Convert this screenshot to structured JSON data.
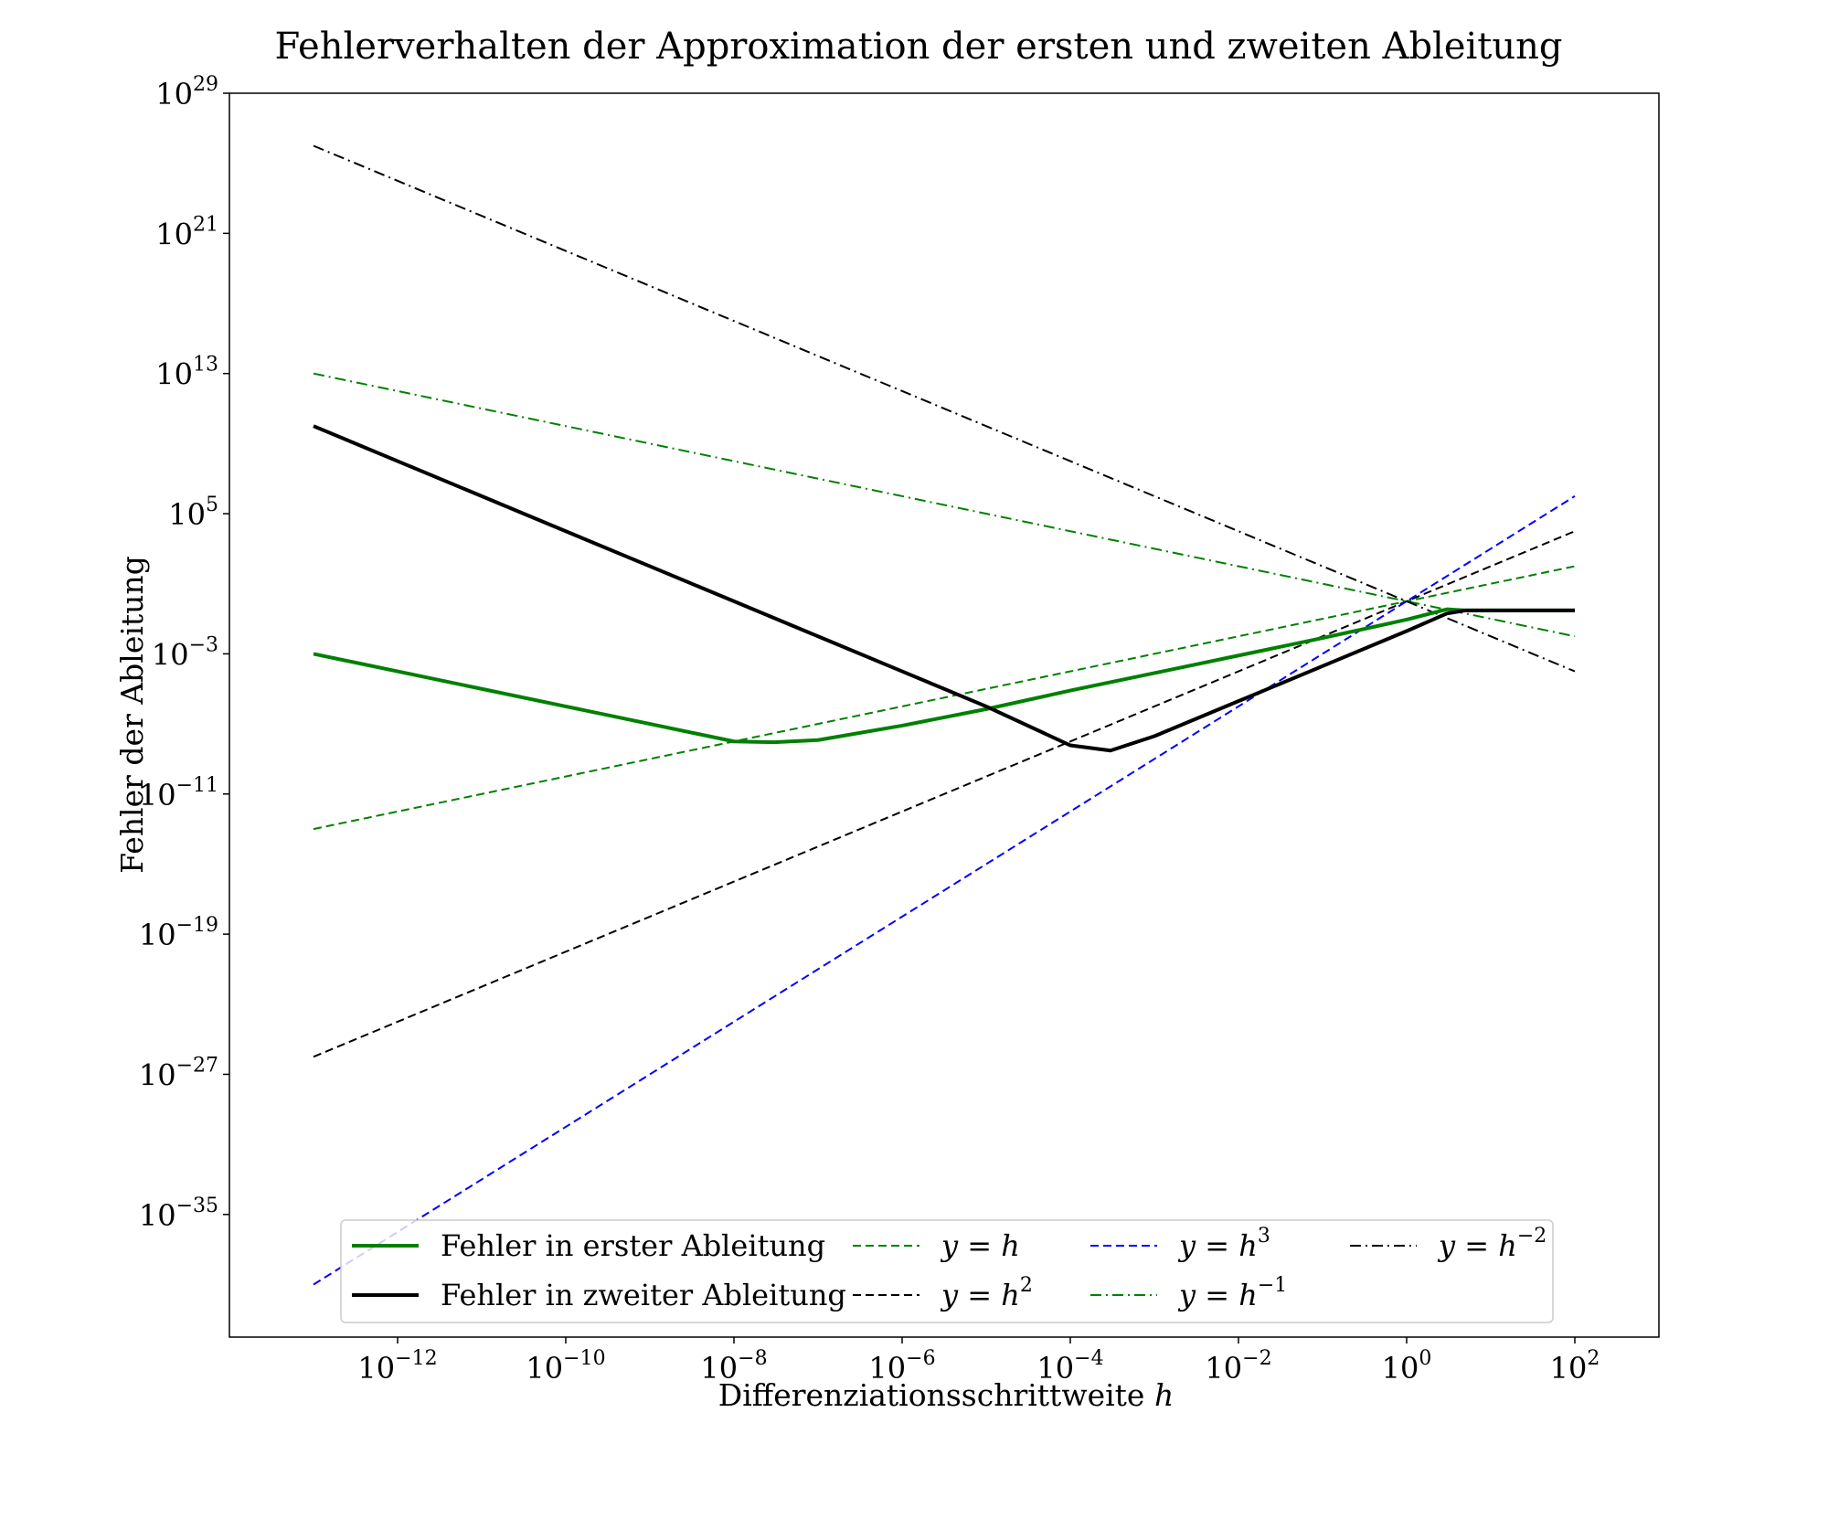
{
  "chart_data": {
    "type": "line",
    "title": "Fehlerverhalten der Approximation der ersten und zweiten Ableitung",
    "xlabel": "Differenziationsschrittweite",
    "xlabel_var": "h",
    "ylabel": "Fehler der Ableitung",
    "xscale": "log",
    "yscale": "log",
    "xlim": [
      1e-14,
      1000.0
    ],
    "ylim": [
      1e-42,
      1e+29
    ],
    "grid": false,
    "legend_position": "bottom",
    "x_ticks": [
      {
        "base": "10",
        "exp": "−12",
        "value": 1e-12
      },
      {
        "base": "10",
        "exp": "−10",
        "value": 1e-10
      },
      {
        "base": "10",
        "exp": "−8",
        "value": 1e-08
      },
      {
        "base": "10",
        "exp": "−6",
        "value": 1e-06
      },
      {
        "base": "10",
        "exp": "−4",
        "value": 0.0001
      },
      {
        "base": "10",
        "exp": "−2",
        "value": 0.01
      },
      {
        "base": "10",
        "exp": "0",
        "value": 1
      },
      {
        "base": "10",
        "exp": "2",
        "value": 100
      }
    ],
    "y_ticks": [
      {
        "base": "10",
        "exp": "29",
        "value": 1e+29
      },
      {
        "base": "10",
        "exp": "21",
        "value": 1e+21
      },
      {
        "base": "10",
        "exp": "13",
        "value": 10000000000000.0
      },
      {
        "base": "10",
        "exp": "5",
        "value": 100000.0
      },
      {
        "base": "10",
        "exp": "−3",
        "value": 0.001
      },
      {
        "base": "10",
        "exp": "−11",
        "value": 1e-11
      },
      {
        "base": "10",
        "exp": "−19",
        "value": 1e-19
      },
      {
        "base": "10",
        "exp": "−27",
        "value": 1e-27
      },
      {
        "base": "10",
        "exp": "−35",
        "value": 1e-35
      }
    ],
    "series": [
      {
        "name": "Fehler in erster Ableitung",
        "color": "#008000",
        "style": "solid",
        "width": 4,
        "x": [
          1e-13,
          1e-12,
          1e-11,
          1e-10,
          1e-09,
          1e-08,
          3e-08,
          1e-07,
          1e-06,
          1e-05,
          0.0001,
          0.001,
          0.01,
          0.1,
          1,
          3,
          5,
          10,
          100
        ],
        "y": [
          0.001,
          0.0001,
          1e-05,
          1e-06,
          1e-07,
          1e-08,
          9e-09,
          1.2e-08,
          8e-08,
          7e-07,
          8e-06,
          8e-05,
          0.0008,
          0.008,
          0.09,
          0.35,
          0.3,
          0.3,
          0.3
        ]
      },
      {
        "name": "Fehler in zweiter Ableitung",
        "color": "#000000",
        "style": "solid",
        "width": 4,
        "x": [
          1e-13,
          1e-12,
          1e-11,
          1e-10,
          1e-09,
          1e-08,
          1e-07,
          1e-06,
          1e-05,
          0.0001,
          0.0003,
          0.001,
          0.01,
          0.1,
          1,
          3,
          5,
          10,
          100
        ],
        "y": [
          10000000000.0,
          100000000.0,
          1000000.0,
          10000.0,
          100.0,
          1,
          0.01,
          0.0001,
          1e-06,
          6e-09,
          3e-09,
          2e-08,
          2e-06,
          0.0002,
          0.02,
          0.2,
          0.3,
          0.3,
          0.3
        ]
      },
      {
        "name": "y = h",
        "color": "#008000",
        "style": "dashed",
        "width": 2,
        "power": 1
      },
      {
        "name": "y = h²",
        "color": "#000000",
        "style": "dashed",
        "width": 2,
        "power": 2
      },
      {
        "name": "y = h³",
        "color": "#0000ff",
        "style": "dashed",
        "width": 2,
        "power": 3
      },
      {
        "name": "y = h⁻¹",
        "color": "#008000",
        "style": "dashdot",
        "width": 2,
        "power": -1
      },
      {
        "name": "y = h⁻²",
        "color": "#000000",
        "style": "dashdot",
        "width": 2,
        "power": -2
      }
    ],
    "reference_x_range": [
      1e-13,
      100
    ]
  },
  "legend": {
    "entries": [
      {
        "label": "Fehler in erster Ableitung",
        "color": "#008000",
        "style": "solid",
        "width": 4
      },
      {
        "label": "Fehler in zweiter Ableitung",
        "color": "#000000",
        "style": "solid",
        "width": 4
      },
      {
        "label": "y = h",
        "math": [
          "y",
          " = ",
          "h",
          ""
        ],
        "color": "#008000",
        "style": "dashed",
        "width": 2
      },
      {
        "label": "y = h2",
        "math": [
          "y",
          " = ",
          "h",
          "2"
        ],
        "color": "#000000",
        "style": "dashed",
        "width": 2
      },
      {
        "label": "y = h3",
        "math": [
          "y",
          " = ",
          "h",
          "3"
        ],
        "color": "#0000ff",
        "style": "dashed",
        "width": 2
      },
      {
        "label": "y = h−1",
        "math": [
          "y",
          " = ",
          "h",
          "−1"
        ],
        "color": "#008000",
        "style": "dashdot",
        "width": 2
      },
      {
        "label": "y = h−2",
        "math": [
          "y",
          " = ",
          "h",
          "−2"
        ],
        "color": "#000000",
        "style": "dashdot",
        "width": 2
      }
    ]
  }
}
